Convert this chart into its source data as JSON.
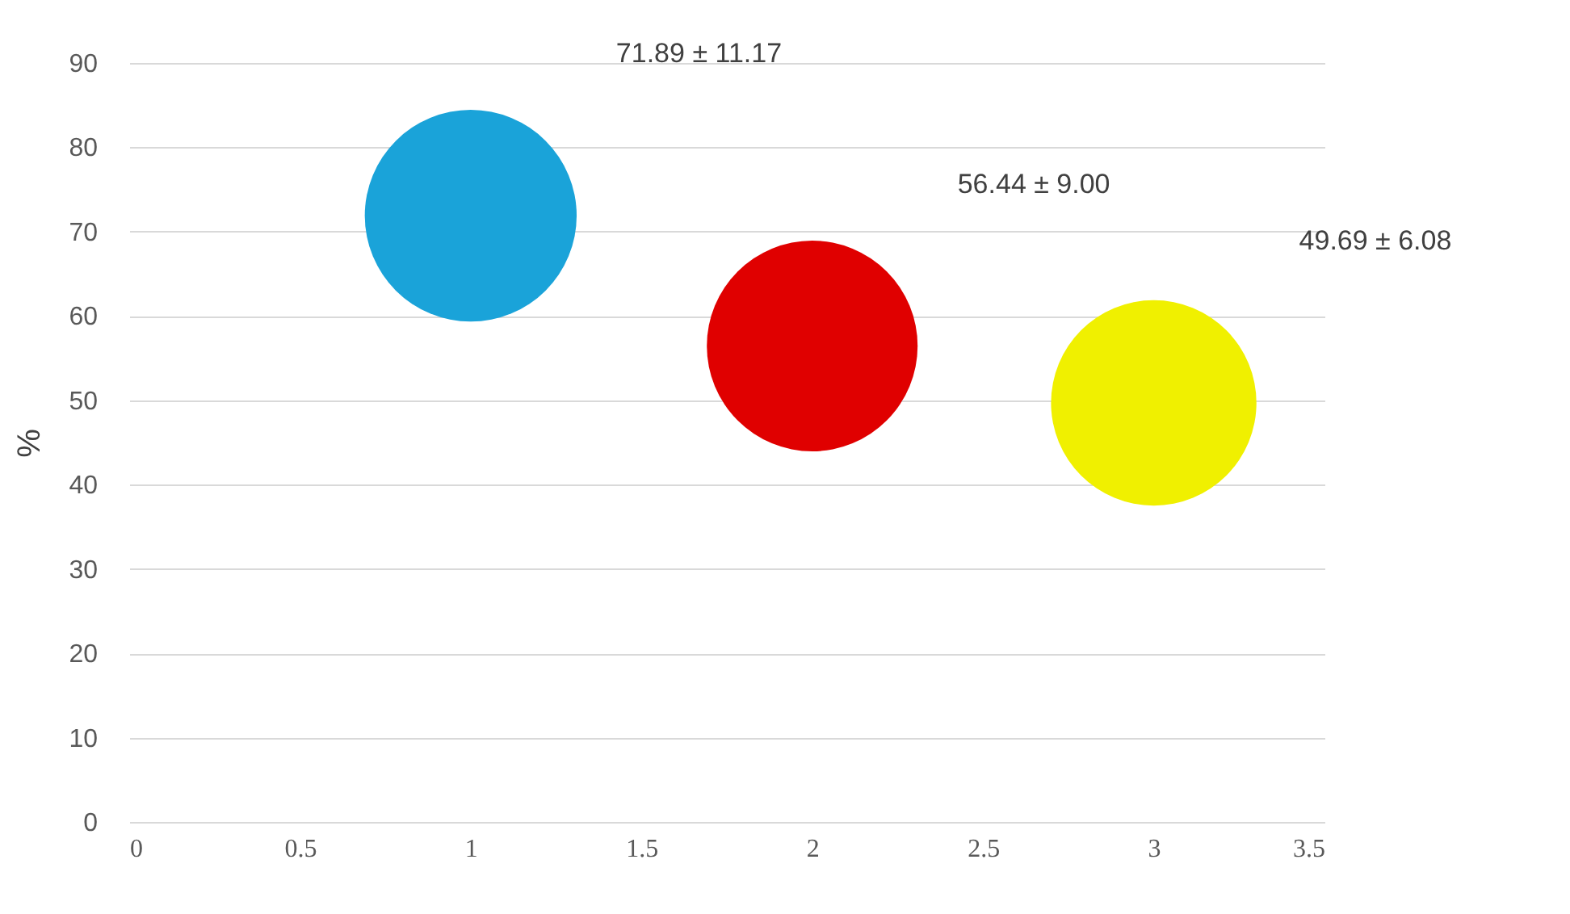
{
  "chart_data": {
    "type": "bubble",
    "ylabel": "%",
    "x": [
      1,
      2,
      3
    ],
    "series": [
      {
        "color": "#1aa3d9",
        "values": [
          71.89,
          null,
          null
        ],
        "sizes": [
          1,
          null,
          null
        ],
        "value_labels": [
          "71.89 ± 11.17",
          null,
          null
        ]
      },
      {
        "color": "#e00000",
        "values": [
          null,
          56.44,
          null
        ],
        "sizes": [
          null,
          0.99,
          null
        ],
        "value_labels": [
          null,
          "56.44 ± 9.00",
          null
        ]
      },
      {
        "color": "#f0f000",
        "values": [
          null,
          null,
          49.69
        ],
        "sizes": [
          null,
          null,
          0.94
        ],
        "value_labels": [
          null,
          null,
          "49.69 ± 6.08"
        ]
      }
    ],
    "xlim": [
      0,
      3.5
    ],
    "xticks": [
      0,
      0.5,
      1,
      1.5,
      2,
      2.5,
      3,
      3.5
    ],
    "ylim": [
      0,
      90
    ],
    "yticks": [
      0,
      10,
      20,
      30,
      40,
      50,
      60,
      70,
      80,
      90
    ],
    "grid": "y"
  }
}
